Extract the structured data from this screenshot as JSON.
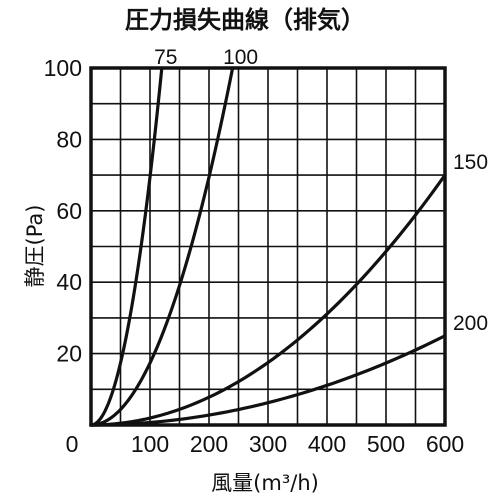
{
  "chart_data": {
    "type": "line",
    "title": "圧力損失曲線（排気）",
    "xlabel": "風量(m³/h)",
    "ylabel": "静圧(Pa)",
    "xlim": [
      0,
      600
    ],
    "ylim": [
      0,
      100
    ],
    "x_ticks": [
      "0",
      "100",
      "200",
      "300",
      "400",
      "500",
      "600"
    ],
    "y_ticks": [
      "20",
      "40",
      "60",
      "80",
      "100"
    ],
    "grid": true,
    "series": [
      {
        "name": "75",
        "x": [
          0,
          30,
          60,
          90,
          120
        ],
        "y": [
          0,
          6.3,
          25,
          56,
          100
        ]
      },
      {
        "name": "100",
        "x": [
          0,
          60,
          120,
          180,
          240
        ],
        "y": [
          0,
          6.3,
          25,
          56,
          100
        ]
      },
      {
        "name": "150",
        "x": [
          0,
          100,
          200,
          300,
          400,
          500,
          600
        ],
        "y": [
          0,
          2,
          8,
          17.5,
          31,
          49,
          70
        ]
      },
      {
        "name": "200",
        "x": [
          0,
          100,
          200,
          300,
          400,
          500,
          600
        ],
        "y": [
          0,
          0.7,
          2.8,
          6.3,
          11.1,
          17.4,
          25
        ]
      }
    ]
  }
}
